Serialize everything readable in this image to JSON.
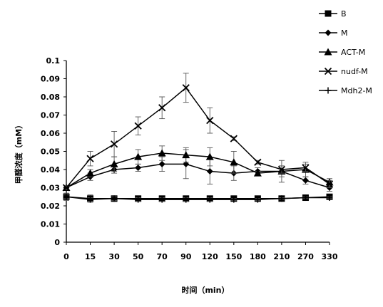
{
  "chart_data": {
    "type": "line",
    "xlabel": "时间（min）",
    "ylabel": "甲醛浓度（mM）",
    "categories": [
      "0",
      "15",
      "30",
      "50",
      "70",
      "90",
      "120",
      "150",
      "180",
      "210",
      "270",
      "330"
    ],
    "ylim": [
      0,
      0.1
    ],
    "yticks": [
      "0",
      "0.01",
      "0.02",
      "0.03",
      "0.04",
      "0.05",
      "0.06",
      "0.07",
      "0.08",
      "0.09",
      "0.1"
    ],
    "grid": false,
    "legend_position": "top-right",
    "series": [
      {
        "name": "B",
        "marker": "square",
        "values": [
          0.025,
          0.024,
          0.024,
          0.024,
          0.024,
          0.024,
          0.024,
          0.024,
          0.024,
          0.024,
          0.0245,
          0.025
        ],
        "errors": [
          0.002,
          0.002,
          0.0015,
          0.0015,
          0.0015,
          0.0015,
          0.0015,
          0.001,
          0.001,
          0.001,
          0.001,
          0.001
        ]
      },
      {
        "name": "M",
        "marker": "diamond",
        "values": [
          0.03,
          0.036,
          0.04,
          0.041,
          0.043,
          0.043,
          0.039,
          0.038,
          0.039,
          0.039,
          0.034,
          0.03
        ],
        "errors": [
          0.001,
          0.002,
          0.002,
          0.002,
          0.004,
          0.008,
          0.007,
          0.004,
          0.002,
          0.006,
          0.002,
          0.002
        ]
      },
      {
        "name": "ACT-M",
        "marker": "triangle",
        "values": [
          0.03,
          0.038,
          0.043,
          0.047,
          0.049,
          0.048,
          0.047,
          0.044,
          0.038,
          0.039,
          0.04,
          0.033
        ],
        "errors": [
          0.001,
          0.002,
          0.004,
          0.004,
          0.004,
          0.004,
          0.005,
          0.006,
          0.001,
          0.003,
          0.004,
          0.002
        ]
      },
      {
        "name": "nudf-M",
        "marker": "x",
        "values": [
          0.03,
          0.046,
          0.054,
          0.064,
          0.074,
          0.085,
          0.067,
          0.057,
          0.044,
          0.04,
          0.041,
          0.032
        ],
        "errors": [
          0.001,
          0.004,
          0.007,
          0.005,
          0.006,
          0.008,
          0.007,
          0.001,
          0.001,
          0.002,
          0.002,
          0.002
        ]
      },
      {
        "name": "Mdh2-M",
        "marker": "plus",
        "values": [
          0.025,
          0.0235,
          0.024,
          0.0235,
          0.0235,
          0.0235,
          0.0235,
          0.0235,
          0.0235,
          0.024,
          0.0245,
          0.0245
        ],
        "errors": [
          0.001,
          0.001,
          0.001,
          0.001,
          0.001,
          0.001,
          0.001,
          0.0005,
          0.0005,
          0.0005,
          0.0005,
          0.0005
        ]
      }
    ]
  }
}
